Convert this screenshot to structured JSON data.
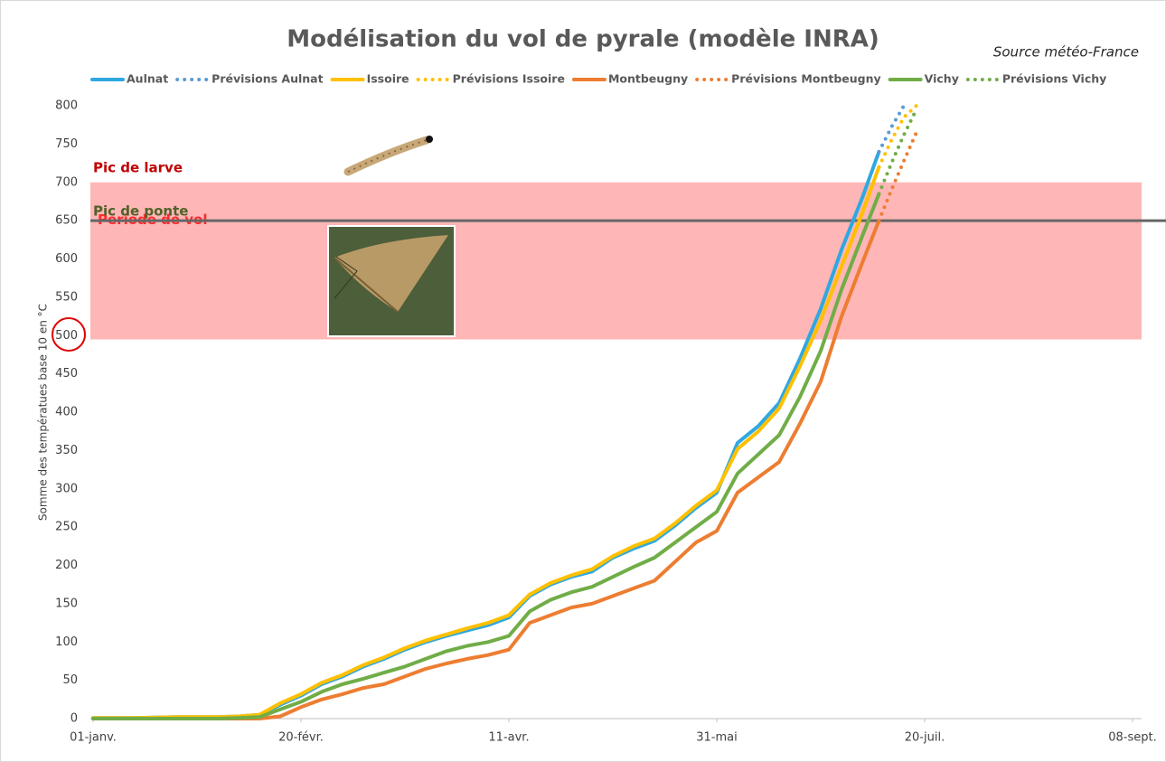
{
  "chart_data": {
    "type": "line",
    "title": "Modélisation du vol de pyrale (modèle INRA)",
    "subtitle": "Source météo-France",
    "y_label": "Somme des températues base 10 en °C",
    "x": [
      0,
      10,
      20,
      30,
      35,
      40,
      45,
      50,
      55,
      60,
      65,
      70,
      75,
      80,
      85,
      90,
      95,
      100,
      105,
      110,
      115,
      120,
      125,
      130,
      135,
      140,
      145,
      150,
      155,
      160,
      165,
      170,
      175,
      180,
      185,
      189,
      192,
      195,
      198
    ],
    "xlim": [
      0,
      250
    ],
    "xticks": [
      {
        "value": 0,
        "label": "01-janv."
      },
      {
        "value": 50,
        "label": "20-févr."
      },
      {
        "value": 100,
        "label": "11-avr."
      },
      {
        "value": 150,
        "label": "31-mai"
      },
      {
        "value": 200,
        "label": "20-juil."
      },
      {
        "value": 250,
        "label": "08-sept."
      }
    ],
    "ylim": [
      0,
      800
    ],
    "yticks": [
      0,
      50,
      100,
      150,
      200,
      250,
      300,
      350,
      400,
      450,
      500,
      550,
      600,
      650,
      700,
      750,
      800
    ],
    "grid": false,
    "legend": "top",
    "bands": [
      {
        "from": 495,
        "to": 700,
        "color": "#ffb6b6",
        "label": "Période de vol",
        "label_color": "#ff2a2a",
        "top_label": "Pic de larve",
        "top_label_color": "#c00000"
      }
    ],
    "hlines": [
      {
        "value": 650,
        "color": "#666666",
        "label": "Pic de ponte",
        "label_color": "#4f6228"
      }
    ],
    "series": [
      {
        "name": "Aulnat",
        "color": "#2fa8e0",
        "style": "solid",
        "values": [
          1,
          1,
          2,
          2,
          3,
          5,
          18,
          30,
          45,
          55,
          68,
          78,
          90,
          100,
          108,
          115,
          122,
          132,
          160,
          175,
          185,
          192,
          210,
          222,
          232,
          252,
          275,
          295,
          360,
          382,
          412,
          470,
          535,
          612,
          680,
          740,
          null,
          null,
          null
        ]
      },
      {
        "name": "Prévisions Aulnat",
        "color": "#5b9bd5",
        "style": "dotted",
        "values": [
          null,
          null,
          null,
          null,
          null,
          null,
          null,
          null,
          null,
          null,
          null,
          null,
          null,
          null,
          null,
          null,
          null,
          null,
          null,
          null,
          null,
          null,
          null,
          null,
          null,
          null,
          null,
          null,
          null,
          null,
          null,
          null,
          null,
          null,
          null,
          740,
          772,
          800,
          null
        ]
      },
      {
        "name": "Issoire",
        "color": "#ffc000",
        "style": "solid",
        "values": [
          1,
          1,
          2,
          2,
          3,
          5,
          20,
          32,
          47,
          57,
          70,
          80,
          92,
          102,
          110,
          118,
          125,
          135,
          162,
          177,
          187,
          195,
          212,
          225,
          235,
          255,
          278,
          298,
          352,
          375,
          405,
          460,
          520,
          590,
          660,
          720,
          null,
          null,
          null
        ]
      },
      {
        "name": "Prévisions Issoire",
        "color": "#ffc000",
        "style": "dotted",
        "values": [
          null,
          null,
          null,
          null,
          null,
          null,
          null,
          null,
          null,
          null,
          null,
          null,
          null,
          null,
          null,
          null,
          null,
          null,
          null,
          null,
          null,
          null,
          null,
          null,
          null,
          null,
          null,
          null,
          null,
          null,
          null,
          null,
          null,
          null,
          null,
          720,
          755,
          785,
          800
        ]
      },
      {
        "name": "Montbeugny",
        "color": "#ed7d31",
        "style": "solid",
        "values": [
          0,
          0,
          0,
          0,
          0,
          0,
          3,
          15,
          25,
          32,
          40,
          45,
          55,
          65,
          72,
          78,
          83,
          90,
          125,
          135,
          145,
          150,
          160,
          170,
          180,
          205,
          230,
          245,
          295,
          315,
          335,
          385,
          440,
          525,
          595,
          650,
          null,
          null,
          null
        ]
      },
      {
        "name": "Prévisions Montbeugny",
        "color": "#ed7d31",
        "style": "dotted",
        "values": [
          null,
          null,
          null,
          null,
          null,
          null,
          null,
          null,
          null,
          null,
          null,
          null,
          null,
          null,
          null,
          null,
          null,
          null,
          null,
          null,
          null,
          null,
          null,
          null,
          null,
          null,
          null,
          null,
          null,
          null,
          null,
          null,
          null,
          null,
          null,
          650,
          690,
          728,
          765
        ]
      },
      {
        "name": "Vichy",
        "color": "#70ad47",
        "style": "solid",
        "values": [
          0,
          0,
          0,
          0,
          1,
          2,
          12,
          22,
          35,
          45,
          52,
          60,
          68,
          78,
          88,
          95,
          100,
          108,
          140,
          155,
          165,
          172,
          185,
          198,
          210,
          230,
          250,
          270,
          320,
          345,
          370,
          420,
          480,
          560,
          630,
          685,
          null,
          null,
          null
        ]
      },
      {
        "name": "Prévisions Vichy",
        "color": "#70ad47",
        "style": "dotted",
        "values": [
          null,
          null,
          null,
          null,
          null,
          null,
          null,
          null,
          null,
          null,
          null,
          null,
          null,
          null,
          null,
          null,
          null,
          null,
          null,
          null,
          null,
          null,
          null,
          null,
          null,
          null,
          null,
          null,
          null,
          null,
          null,
          null,
          null,
          null,
          null,
          685,
          725,
          762,
          795
        ]
      }
    ]
  }
}
